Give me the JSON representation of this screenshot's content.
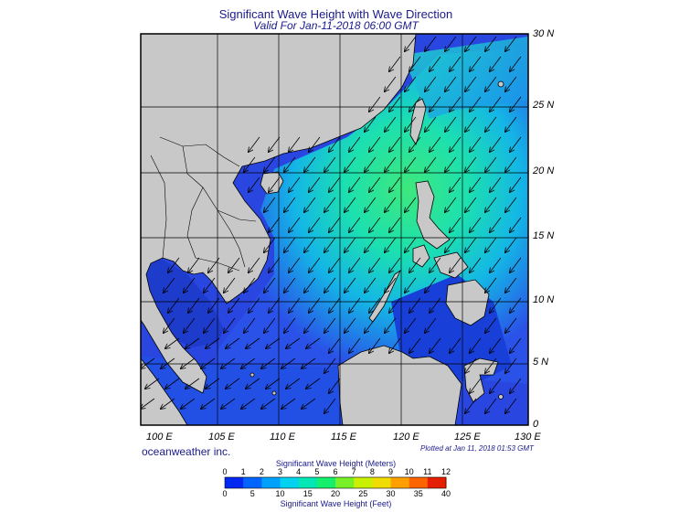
{
  "title": "Significant Wave Height with Wave Direction",
  "subtitle": "Valid For Jan-11-2018 06:00 GMT",
  "brand": "oceanweather inc.",
  "plotted": "Plotted at Jan 11, 2018 01:53 GMT",
  "lat_labels": [
    "30 N",
    "25 N",
    "20 N",
    "15 N",
    "10 N",
    "5 N",
    "0"
  ],
  "lon_labels": [
    "100 E",
    "105 E",
    "110 E",
    "115 E",
    "120 E",
    "125 E",
    "130 E"
  ],
  "colorbar": {
    "meters_title": "Significant Wave Height (Meters)",
    "feet_title": "Significant Wave Height (Feet)",
    "meters_ticks": [
      "0",
      "1",
      "2",
      "3",
      "4",
      "5",
      "6",
      "7",
      "8",
      "9",
      "10",
      "11",
      "12"
    ],
    "feet_ticks": [
      "0",
      "5",
      "10",
      "15",
      "20",
      "25",
      "30",
      "35",
      "40"
    ],
    "colors": [
      "#0000b4",
      "#0028f0",
      "#0064ff",
      "#00a0ff",
      "#00d2f0",
      "#00e6b4",
      "#14f06e",
      "#78f028",
      "#c8f000",
      "#f0dc00",
      "#ffa000",
      "#ff6400",
      "#e61e00"
    ]
  },
  "colors": {
    "land": "#c8c8c8",
    "coast": "#000000",
    "title": "#1a1a8c"
  }
}
